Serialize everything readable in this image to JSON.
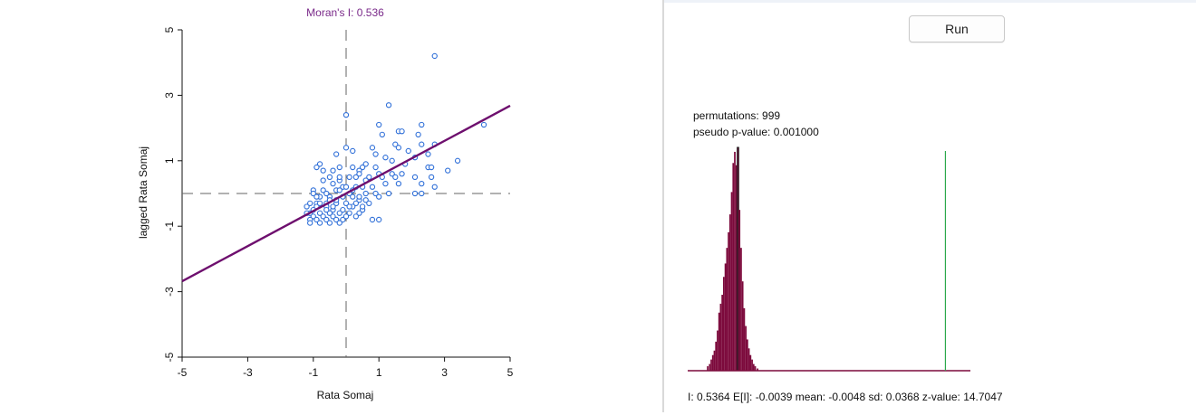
{
  "chart_data": [
    {
      "type": "scatter",
      "title": "Moran's I: 0.536",
      "xlabel": "Rata Somaj",
      "ylabel": "lagged Rata Somaj",
      "xlim": [
        -5,
        5
      ],
      "ylim": [
        -5,
        5
      ],
      "xticks": [
        "-5",
        "-3",
        "-1",
        "1",
        "3",
        "5"
      ],
      "yticks": [
        "-5",
        "-3",
        "-1",
        "1",
        "3",
        "5"
      ],
      "fit_line": {
        "slope": 0.536,
        "intercept": 0
      },
      "colors": {
        "points": "#2f6fd8",
        "fit": "#6e0f6e",
        "title": "#7a2a8a"
      },
      "points": [
        [
          2.7,
          4.2
        ],
        [
          0.0,
          2.4
        ],
        [
          1.3,
          2.7
        ],
        [
          1.0,
          2.1
        ],
        [
          2.3,
          2.1
        ],
        [
          1.6,
          1.9
        ],
        [
          1.7,
          1.9
        ],
        [
          2.2,
          1.8
        ],
        [
          1.1,
          1.8
        ],
        [
          2.7,
          1.5
        ],
        [
          2.3,
          1.5
        ],
        [
          4.2,
          2.1
        ],
        [
          1.5,
          1.5
        ],
        [
          1.6,
          1.4
        ],
        [
          1.9,
          1.3
        ],
        [
          0.8,
          1.4
        ],
        [
          2.5,
          1.2
        ],
        [
          2.1,
          1.1
        ],
        [
          0.0,
          1.4
        ],
        [
          0.2,
          1.3
        ],
        [
          -0.3,
          1.2
        ],
        [
          0.9,
          1.2
        ],
        [
          1.2,
          1.1
        ],
        [
          1.4,
          1.0
        ],
        [
          3.4,
          1.0
        ],
        [
          0.5,
          0.8
        ],
        [
          2.5,
          0.8
        ],
        [
          2.6,
          0.8
        ],
        [
          3.1,
          0.7
        ],
        [
          -0.8,
          0.9
        ],
        [
          -0.9,
          0.8
        ],
        [
          -0.7,
          0.7
        ],
        [
          -0.4,
          0.7
        ],
        [
          -0.2,
          0.8
        ],
        [
          0.4,
          0.7
        ],
        [
          1.0,
          0.6
        ],
        [
          1.4,
          0.6
        ],
        [
          1.7,
          0.6
        ],
        [
          0.1,
          0.5
        ],
        [
          0.3,
          0.5
        ],
        [
          0.7,
          0.5
        ],
        [
          1.1,
          0.5
        ],
        [
          1.5,
          0.5
        ],
        [
          2.1,
          0.5
        ],
        [
          2.6,
          0.5
        ],
        [
          -0.5,
          0.5
        ],
        [
          -0.2,
          0.4
        ],
        [
          0.6,
          0.4
        ],
        [
          1.2,
          0.3
        ],
        [
          1.6,
          0.3
        ],
        [
          2.3,
          0.3
        ],
        [
          -0.1,
          0.2
        ],
        [
          0.3,
          0.2
        ],
        [
          0.5,
          0.2
        ],
        [
          0.8,
          0.2
        ],
        [
          2.7,
          0.2
        ],
        [
          -1.0,
          0.1
        ],
        [
          -0.7,
          0.1
        ],
        [
          -0.3,
          0.1
        ],
        [
          0.1,
          0.0
        ],
        [
          0.9,
          0.0
        ],
        [
          1.3,
          0.0
        ],
        [
          2.1,
          0.0
        ],
        [
          2.3,
          0.0
        ],
        [
          -1.0,
          0.0
        ],
        [
          -0.8,
          -0.1
        ],
        [
          -0.5,
          -0.1
        ],
        [
          -0.1,
          -0.1
        ],
        [
          0.2,
          -0.1
        ],
        [
          0.4,
          -0.2
        ],
        [
          0.6,
          -0.2
        ],
        [
          1.0,
          -0.1
        ],
        [
          -0.9,
          -0.3
        ],
        [
          -0.6,
          -0.3
        ],
        [
          -0.3,
          -0.3
        ],
        [
          0.0,
          -0.3
        ],
        [
          0.3,
          -0.3
        ],
        [
          -1.2,
          -0.4
        ],
        [
          -0.9,
          -0.4
        ],
        [
          -0.6,
          -0.4
        ],
        [
          -0.4,
          -0.5
        ],
        [
          -0.1,
          -0.5
        ],
        [
          0.2,
          -0.4
        ],
        [
          0.5,
          -0.5
        ],
        [
          -1.1,
          -0.6
        ],
        [
          -0.8,
          -0.6
        ],
        [
          -0.5,
          -0.6
        ],
        [
          -0.2,
          -0.6
        ],
        [
          0.1,
          -0.6
        ],
        [
          0.4,
          -0.6
        ],
        [
          -1.0,
          -0.7
        ],
        [
          -0.7,
          -0.7
        ],
        [
          -0.4,
          -0.7
        ],
        [
          -0.1,
          -0.8
        ],
        [
          0.8,
          -0.8
        ],
        [
          1.0,
          -0.8
        ],
        [
          -1.1,
          -0.8
        ],
        [
          -0.9,
          -0.8
        ],
        [
          -0.6,
          -0.8
        ],
        [
          -0.3,
          -0.8
        ],
        [
          -1.1,
          -0.9
        ],
        [
          -0.8,
          -0.9
        ],
        [
          -0.5,
          -0.9
        ],
        [
          -0.2,
          -0.9
        ],
        [
          0.0,
          -0.7
        ],
        [
          0.3,
          -0.7
        ],
        [
          -0.7,
          0.4
        ],
        [
          -0.4,
          0.3
        ],
        [
          -0.2,
          0.1
        ],
        [
          0.0,
          0.2
        ],
        [
          0.2,
          0.1
        ],
        [
          0.4,
          -0.1
        ],
        [
          0.6,
          0.0
        ],
        [
          0.7,
          -0.3
        ],
        [
          -0.5,
          -0.2
        ],
        [
          -0.3,
          -0.2
        ],
        [
          -0.6,
          -0.5
        ],
        [
          -0.8,
          -0.3
        ],
        [
          -1.0,
          -0.5
        ],
        [
          -0.9,
          -0.1
        ],
        [
          0.1,
          -0.4
        ],
        [
          0.4,
          0.6
        ],
        [
          0.9,
          0.8
        ],
        [
          1.8,
          0.9
        ],
        [
          0.6,
          0.9
        ],
        [
          -0.2,
          0.5
        ],
        [
          0.2,
          0.8
        ],
        [
          -0.6,
          0.0
        ],
        [
          0.5,
          -0.4
        ],
        [
          -0.4,
          -0.4
        ],
        [
          -1.2,
          -0.6
        ],
        [
          -1.1,
          -0.3
        ]
      ]
    },
    {
      "type": "bar",
      "title": "",
      "xlim": [
        -0.12,
        0.6
      ],
      "ylim": [
        0,
        1
      ],
      "observed_I": 0.5364,
      "bin_width": 0.004,
      "bins": [
        [
          -0.071,
          0.02
        ],
        [
          -0.066,
          0.03
        ],
        [
          -0.062,
          0.05
        ],
        [
          -0.058,
          0.07
        ],
        [
          -0.054,
          0.09
        ],
        [
          -0.05,
          0.13
        ],
        [
          -0.046,
          0.18
        ],
        [
          -0.042,
          0.26
        ],
        [
          -0.038,
          0.3
        ],
        [
          -0.034,
          0.34
        ],
        [
          -0.03,
          0.42
        ],
        [
          -0.026,
          0.48
        ],
        [
          -0.022,
          0.55
        ],
        [
          -0.018,
          0.62
        ],
        [
          -0.014,
          0.7
        ],
        [
          -0.01,
          0.8
        ],
        [
          -0.006,
          0.93
        ],
        [
          -0.002,
          0.98
        ],
        [
          0.002,
          0.92
        ],
        [
          0.006,
          1.0
        ],
        [
          0.01,
          0.72
        ],
        [
          0.014,
          0.55
        ],
        [
          0.018,
          0.4
        ],
        [
          0.022,
          0.28
        ],
        [
          0.026,
          0.2
        ],
        [
          0.03,
          0.14
        ],
        [
          0.034,
          0.1
        ],
        [
          0.038,
          0.07
        ],
        [
          0.042,
          0.05
        ],
        [
          0.046,
          0.03
        ],
        [
          0.05,
          0.02
        ],
        [
          0.056,
          0.01
        ]
      ],
      "colors": {
        "bars": "#7c0a3c",
        "baseline": "#7c0a3c",
        "observed": "#2aa84a",
        "highlight": "#222222"
      }
    }
  ],
  "right_panel": {
    "run_label": "Run",
    "permutations": "permutations: 999",
    "pvalue": "pseudo p-value: 0.001000",
    "summary": "I: 0.5364   E[I]: -0.0039  mean: -0.0048  sd: 0.0368  z-value: 14.7047"
  }
}
